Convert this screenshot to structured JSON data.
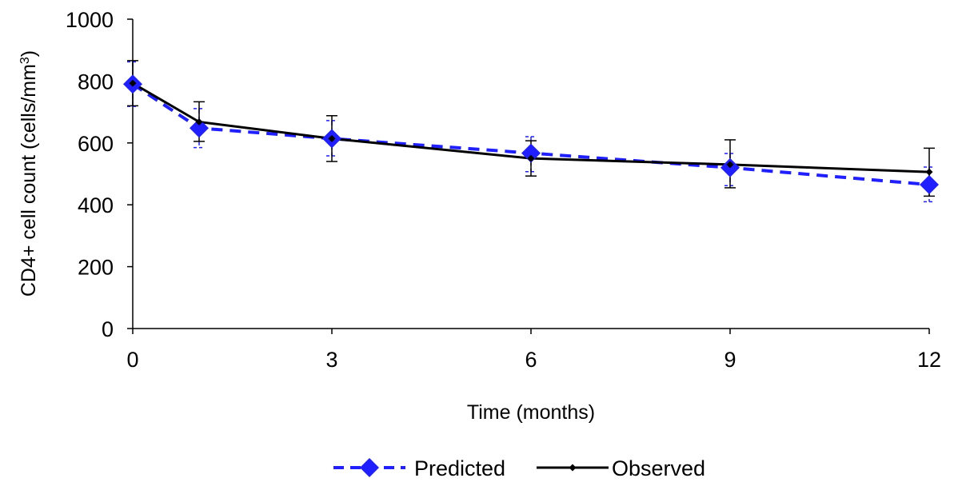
{
  "chart_data": {
    "type": "line",
    "title": "",
    "xlabel": "Time (months)",
    "ylabel": "CD4+ cell count (cells/mm",
    "ylabel_superscript": "3",
    "ylabel_suffix": ")",
    "x": [
      0,
      1,
      3,
      6,
      9,
      12
    ],
    "xlim": [
      0,
      12
    ],
    "ylim": [
      0,
      1000
    ],
    "xticks": [
      0,
      3,
      6,
      9,
      12
    ],
    "yticks": [
      0,
      200,
      400,
      600,
      800,
      1000
    ],
    "xtick_labels": [
      "0",
      "3",
      "6",
      "9",
      "12"
    ],
    "ytick_labels": [
      "0",
      "200",
      "400",
      "600",
      "800",
      "1000"
    ],
    "grid": false,
    "legend_position": "bottom-center",
    "series": [
      {
        "name": "Predicted",
        "color": "#1f1fff",
        "line_style": "dashed",
        "marker": "diamond",
        "values": [
          790,
          648,
          614,
          567,
          520,
          465
        ],
        "error_low": [
          718,
          585,
          558,
          507,
          462,
          410
        ],
        "error_high": [
          862,
          711,
          672,
          620,
          566,
          522
        ]
      },
      {
        "name": "Observed",
        "color": "#000000",
        "line_style": "solid",
        "marker": "small-diamond",
        "values": [
          793,
          668,
          614,
          550,
          530,
          506
        ],
        "error_low": [
          720,
          605,
          540,
          493,
          455,
          428
        ],
        "error_high": [
          866,
          733,
          688,
          607,
          610,
          583
        ]
      }
    ]
  }
}
